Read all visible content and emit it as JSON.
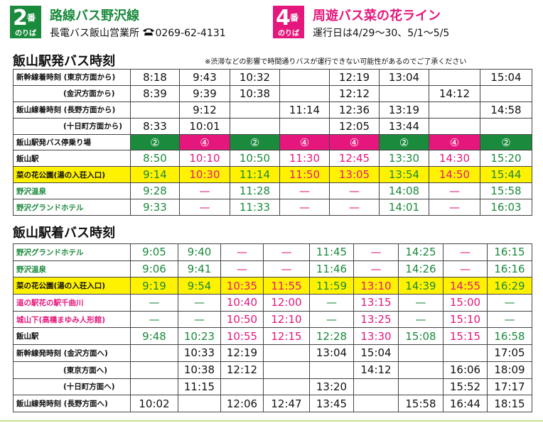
{
  "header": {
    "left": {
      "number": "2",
      "ban": "番",
      "noriba": "のりば",
      "title": "路線バス野沢線",
      "company": "長電バス飯山営業所",
      "phone": "0269-62-4131"
    },
    "right": {
      "number": "4",
      "ban": "番",
      "noriba": "のりば",
      "title": "周遊バス菜の花ライン",
      "note": "運行日は4/29〜30、5/1〜5/5"
    }
  },
  "departures": {
    "title": "飯山駅発バス時刻",
    "note": "※渋滞などの影響で時間通りバスが運行できない可能性があるのでご了承ください",
    "rows": [
      {
        "label": "新幹線着時刻 (東京方面から)",
        "cells": [
          "8:18",
          "9:43",
          "10:32",
          null,
          "12:19",
          "13:04",
          null,
          "15:04"
        ]
      },
      {
        "label": "(金沢方面から)",
        "cells": [
          "8:39",
          "9:39",
          "10:38",
          null,
          "12:12",
          null,
          "14:12",
          null
        ]
      },
      {
        "label": "飯山線着時刻 (長野方面から)",
        "cells": [
          null,
          "9:12",
          null,
          "11:14",
          "12:36",
          "13:19",
          null,
          "14:58"
        ]
      },
      {
        "label": "(十日町方面から)",
        "cells": [
          "8:33",
          "10:01",
          null,
          null,
          "12:05",
          "13:44",
          null,
          null
        ]
      },
      {
        "label": "飯山駅発バス停乗り場",
        "cells": [
          "②",
          "④",
          "②",
          "④",
          "④",
          "②",
          "④",
          "②"
        ]
      },
      {
        "label": "飯山駅",
        "cells": [
          "8:50",
          "10:10",
          "10:50",
          "11:30",
          "12:45",
          "13:30",
          "14:30",
          "15:20"
        ]
      },
      {
        "label": "菜の花公園(湯の入荘入口)",
        "cells": [
          "9:14",
          "10:30",
          "11:14",
          "11:50",
          "13:05",
          "13:54",
          "14:50",
          "15:44"
        ]
      },
      {
        "label": "野沢温泉",
        "cells": [
          "9:28",
          "—",
          "11:28",
          "—",
          "—",
          "14:08",
          "—",
          "15:58"
        ]
      },
      {
        "label": "野沢グランドホテル",
        "cells": [
          "9:33",
          "—",
          "11:33",
          "—",
          "—",
          "14:01",
          "—",
          "16:03"
        ]
      }
    ]
  },
  "arrivals": {
    "title": "飯山駅着バス時刻",
    "rows": [
      {
        "label": "野沢グランドホテル",
        "cells": [
          "9:05",
          "9:40",
          "—",
          "—",
          "11:45",
          "—",
          "14:25",
          "—",
          "16:15"
        ]
      },
      {
        "label": "野沢温泉",
        "cells": [
          "9:06",
          "9:41",
          "—",
          "—",
          "11:46",
          "—",
          "14:26",
          "—",
          "16:16"
        ]
      },
      {
        "label": "菜の花公園(湯の入荘入口)",
        "cells": [
          "9:19",
          "9:54",
          "10:35",
          "11:55",
          "11:59",
          "13:10",
          "14:39",
          "14:55",
          "16:29"
        ]
      },
      {
        "label": "道の駅花の駅千曲川",
        "cells": [
          "—",
          "—",
          "10:40",
          "12:00",
          "—",
          "13:15",
          "—",
          "15:00",
          "—"
        ]
      },
      {
        "label": "城山下(高橋まゆみ人形館)",
        "cells": [
          "—",
          "—",
          "10:50",
          "12:10",
          "—",
          "13:25",
          "—",
          "15:10",
          "—"
        ]
      },
      {
        "label": "飯山駅",
        "cells": [
          "9:48",
          "10:23",
          "10:55",
          "12:15",
          "12:28",
          "13:30",
          "15:08",
          "15:15",
          "16:58"
        ]
      },
      {
        "label": "新幹線発時刻 (金沢方面へ)",
        "cells": [
          null,
          "10:33",
          "12:19",
          null,
          "13:04",
          "15:04",
          null,
          null,
          "17:05"
        ]
      },
      {
        "label": "(東京方面へ)",
        "cells": [
          null,
          "10:38",
          "12:12",
          null,
          null,
          "14:12",
          null,
          "16:06",
          "18:09"
        ]
      },
      {
        "label": "(十日町方面へ)",
        "cells": [
          null,
          "11:15",
          null,
          null,
          "13:20",
          null,
          null,
          "15:52",
          "17:17"
        ]
      },
      {
        "label": "飯山線発時刻 (長野方面へ)",
        "cells": [
          "10:02",
          null,
          "12:06",
          "12:47",
          "13:45",
          null,
          "15:58",
          "16:44",
          "18:15"
        ]
      }
    ]
  }
}
